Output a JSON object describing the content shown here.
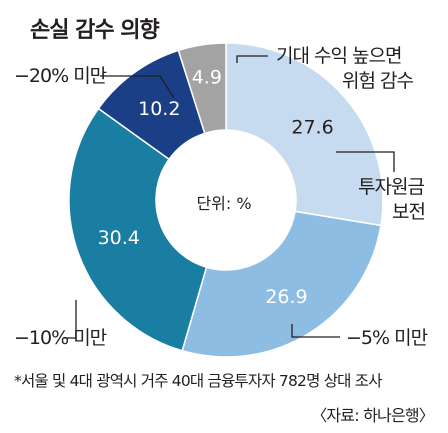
{
  "chart_data": {
    "type": "pie",
    "title": "손실 감수 의향",
    "center_label": "단위: %",
    "categories": [
      "원금보전",
      "-5% 미만",
      "-10% 미만",
      "-20% 미만",
      "기대 수익 높으면 위험 감수"
    ],
    "values": [
      27.6,
      26.9,
      30.4,
      10.2,
      4.9
    ],
    "value_labels": [
      "27.6",
      "26.9",
      "30.4",
      "10.2",
      "4.9"
    ],
    "legend_labels": {
      "loss20": "−20% 미만",
      "risk_line1": "기대 수익 높으면",
      "risk_line2": "위험 감수",
      "principal_line1": "투자원금",
      "principal_line2": "보전",
      "loss5": "−5% 미만",
      "loss10": "−10% 미만"
    },
    "colors": [
      "#c6dbef",
      "#8ebde3",
      "#1a7ea3",
      "#1a3f86",
      "#a3a3a3"
    ]
  },
  "footnote": "*서울 및 4대 광역시 거주 40대 금융투자자 782명 상대 조사",
  "source": "〈자료: 하나은행〉"
}
